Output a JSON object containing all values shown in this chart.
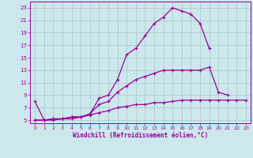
{
  "xlabel": "Windchill (Refroidissement éolien,°C)",
  "bg_color": "#cce8ec",
  "grid_color": "#aacccc",
  "line_color": "#990099",
  "xlim": [
    -0.5,
    23.5
  ],
  "ylim": [
    4.5,
    24
  ],
  "xticks": [
    0,
    1,
    2,
    3,
    4,
    5,
    6,
    7,
    8,
    9,
    10,
    11,
    12,
    13,
    14,
    15,
    16,
    17,
    18,
    19,
    20,
    21,
    22,
    23
  ],
  "yticks": [
    5,
    7,
    9,
    11,
    13,
    15,
    17,
    19,
    21,
    23
  ],
  "line1_x": [
    0,
    1,
    2,
    3,
    4,
    5,
    6,
    7,
    8,
    9,
    10,
    11,
    12,
    13,
    14,
    15,
    16,
    17,
    18,
    19
  ],
  "line1_y": [
    8.0,
    5.0,
    5.2,
    5.2,
    5.2,
    5.5,
    6.0,
    8.5,
    9.0,
    11.5,
    15.5,
    16.5,
    18.5,
    20.5,
    21.5,
    23.0,
    22.5,
    22.0,
    20.5,
    16.5
  ],
  "line2_x": [
    0,
    1,
    2,
    3,
    4,
    5,
    6,
    7,
    8,
    9,
    10,
    11,
    12,
    13,
    14,
    15,
    16,
    17,
    18,
    19,
    20,
    21
  ],
  "line2_y": [
    5.0,
    5.0,
    5.2,
    5.2,
    5.5,
    5.5,
    6.0,
    7.5,
    8.0,
    9.5,
    10.5,
    11.5,
    12.0,
    12.5,
    13.0,
    13.0,
    13.0,
    13.0,
    13.0,
    13.5,
    9.5,
    9.0
  ],
  "line3_x": [
    0,
    1,
    2,
    3,
    4,
    5,
    6,
    7,
    8,
    9,
    10,
    11,
    12,
    13,
    14,
    15,
    16,
    17,
    18,
    19,
    20,
    21,
    22,
    23
  ],
  "line3_y": [
    5.0,
    5.0,
    5.0,
    5.2,
    5.5,
    5.5,
    5.8,
    6.2,
    6.5,
    7.0,
    7.2,
    7.5,
    7.5,
    7.8,
    7.8,
    8.0,
    8.2,
    8.2,
    8.2,
    8.2,
    8.2,
    8.2,
    8.2,
    8.2
  ]
}
